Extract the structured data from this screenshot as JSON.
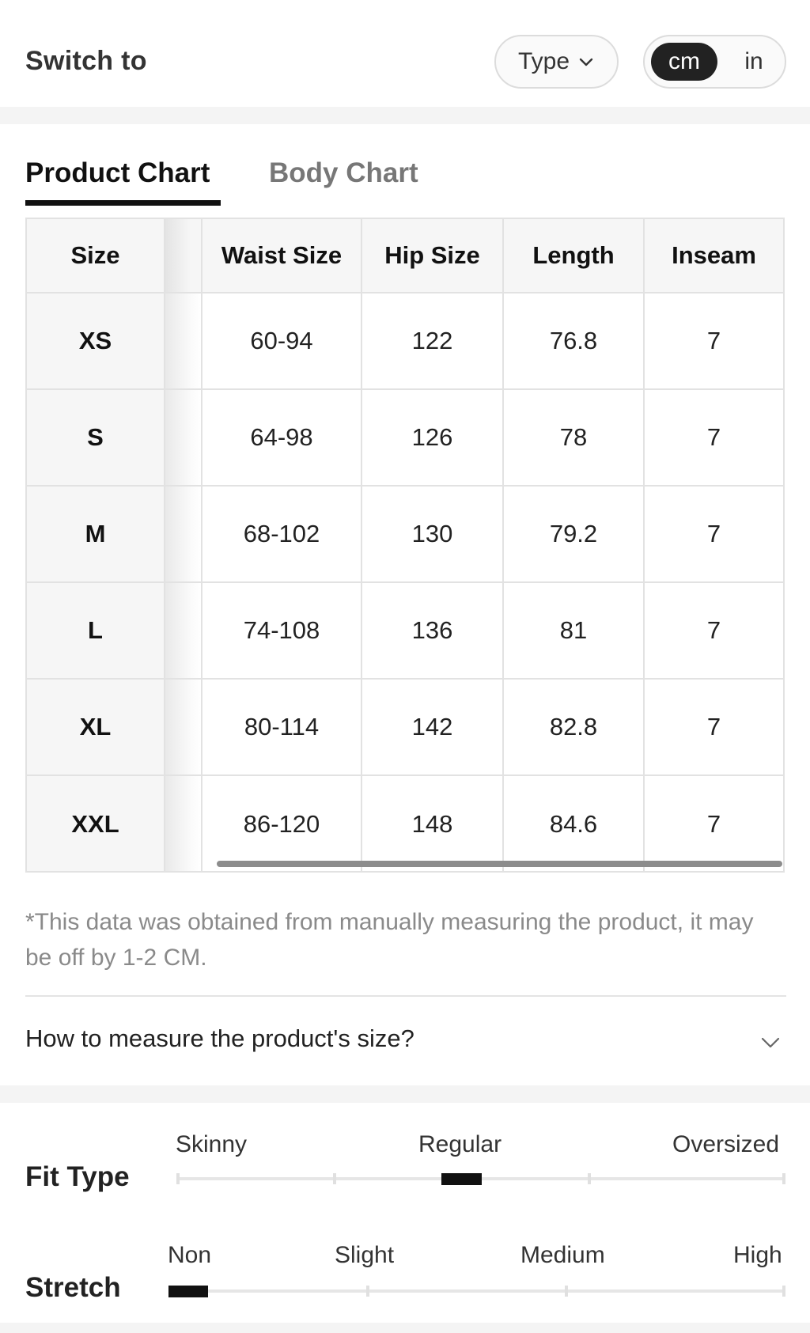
{
  "header": {
    "title": "Switch to",
    "type_button_label": "Type",
    "unit_selected": "cm",
    "unit_other": "in"
  },
  "tabs": [
    {
      "label": "Product Chart",
      "active": true
    },
    {
      "label": "Body Chart",
      "active": false
    }
  ],
  "table": {
    "columns": [
      "Size",
      "Waist Size",
      "Hip Size",
      "Length",
      "Inseam"
    ],
    "rows": [
      {
        "size": "XS",
        "waist": "60-94",
        "hip": "122",
        "length": "76.8",
        "inseam": "7"
      },
      {
        "size": "S",
        "waist": "64-98",
        "hip": "126",
        "length": "78",
        "inseam": "7"
      },
      {
        "size": "M",
        "waist": "68-102",
        "hip": "130",
        "length": "79.2",
        "inseam": "7"
      },
      {
        "size": "L",
        "waist": "74-108",
        "hip": "136",
        "length": "81",
        "inseam": "7"
      },
      {
        "size": "XL",
        "waist": "80-114",
        "hip": "142",
        "length": "82.8",
        "inseam": "7"
      },
      {
        "size": "XXL",
        "waist": "86-120",
        "hip": "148",
        "length": "84.6",
        "inseam": "7"
      }
    ]
  },
  "note": "*This data was obtained from manually measuring the product, it may be off by 1-2 CM.",
  "measure_question": "How to measure the product's size?",
  "fit_type": {
    "title": "Fit Type",
    "labels": [
      "Skinny",
      "Regular",
      "Oversized"
    ],
    "selected": "Regular"
  },
  "stretch": {
    "title": "Stretch",
    "labels": [
      "Non",
      "Slight",
      "Medium",
      "High"
    ],
    "selected": "Non"
  },
  "colors": {
    "active": "#111111",
    "muted_text": "#8a8a8a",
    "border": "#e2e2e2",
    "header_bg": "#f6f6f6"
  }
}
